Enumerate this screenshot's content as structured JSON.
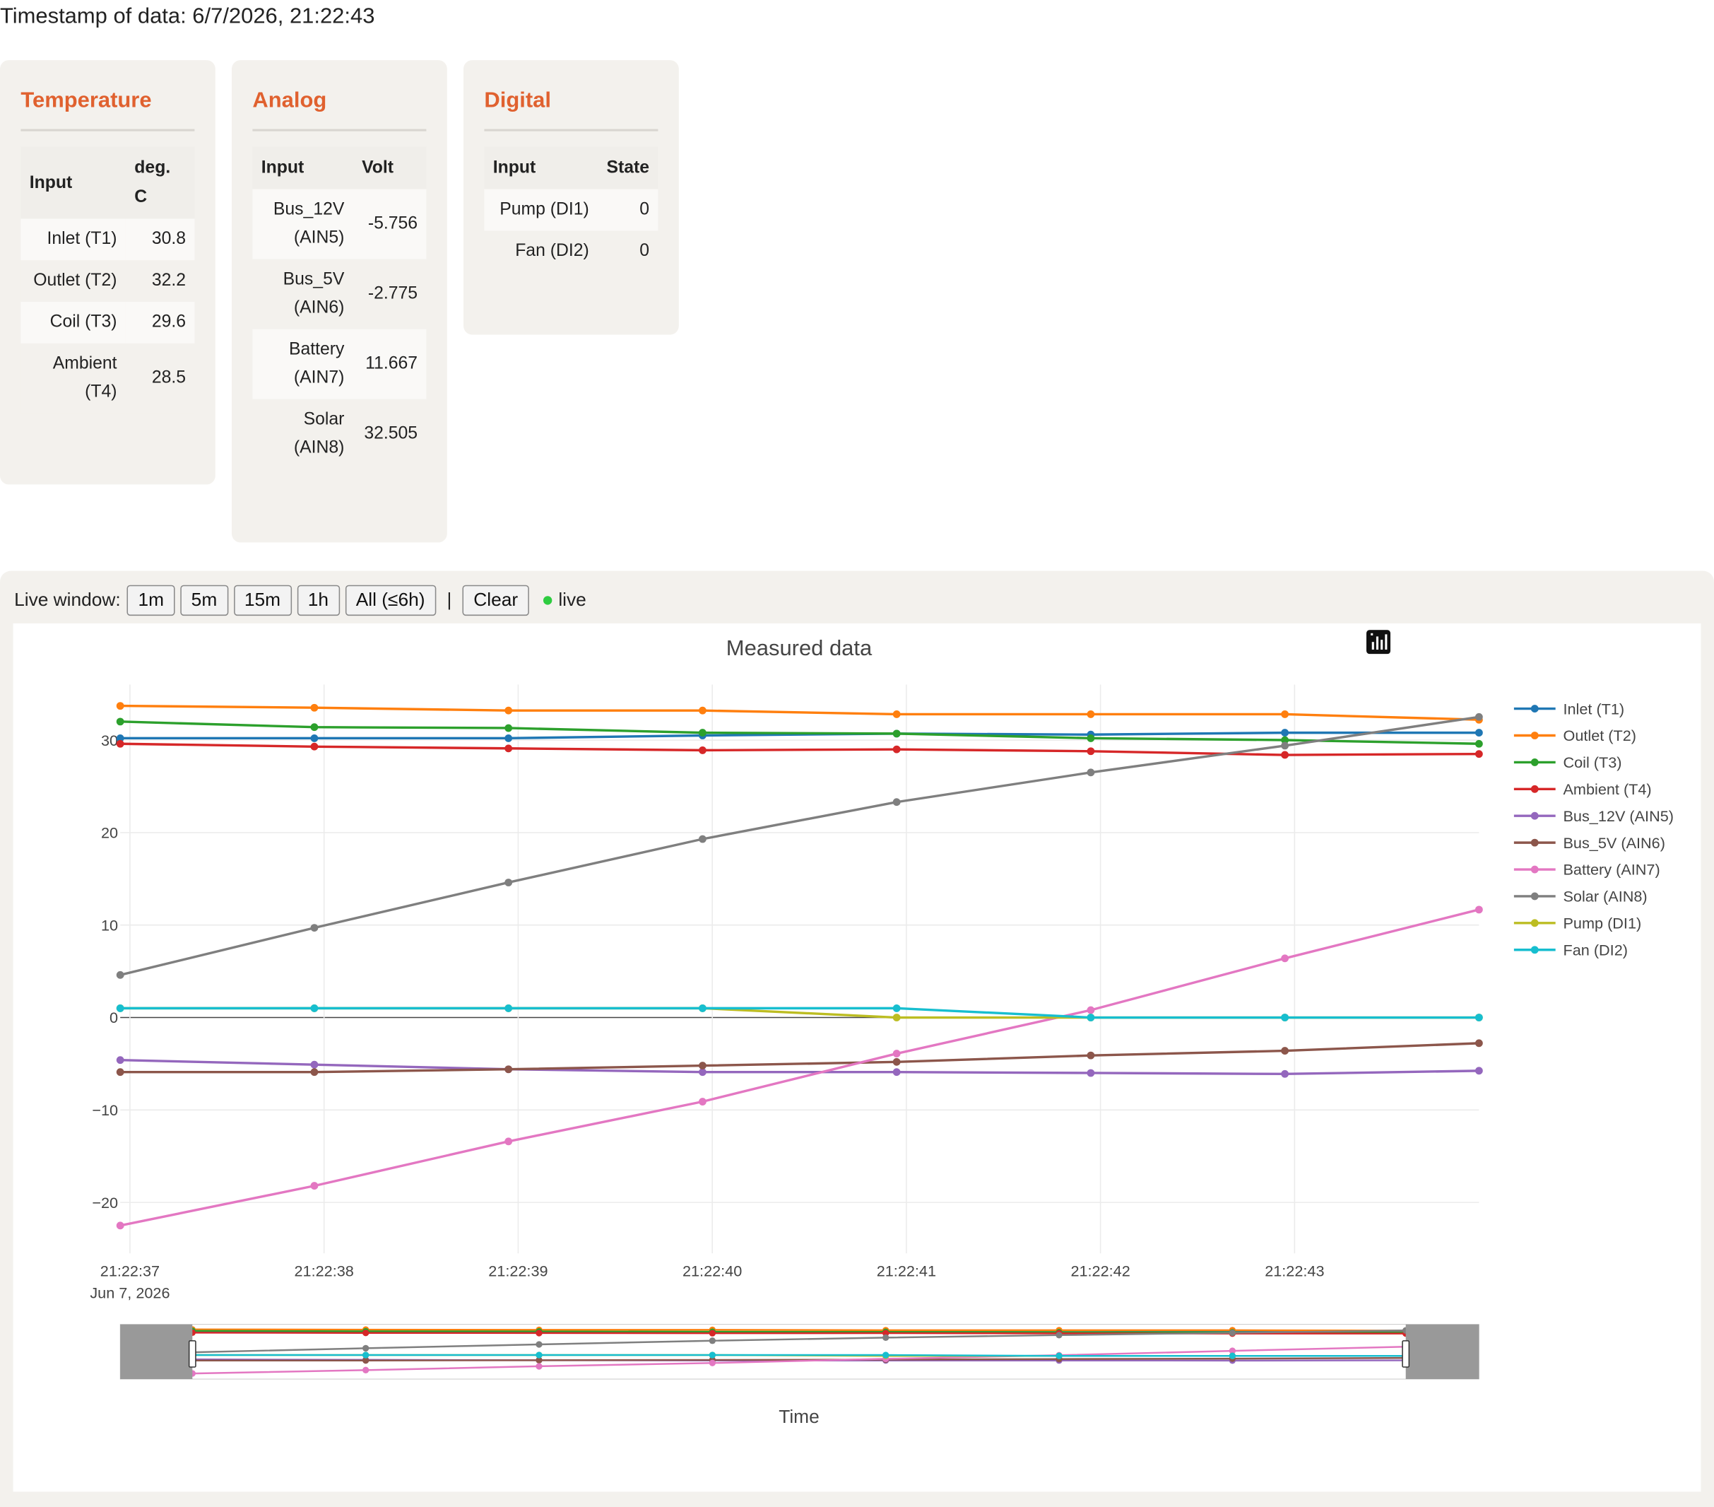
{
  "timestamp_text": "Timestamp of data: 6/7/2026, 21:22:43",
  "cards": {
    "temperature": {
      "title": "Temperature",
      "header": [
        "Input",
        "deg. C"
      ],
      "rows": [
        {
          "input": "Inlet (T1)",
          "value": "30.8"
        },
        {
          "input": "Outlet (T2)",
          "value": "32.2"
        },
        {
          "input": "Coil (T3)",
          "value": "29.6"
        },
        {
          "input": "Ambient (T4)",
          "value": "28.5"
        }
      ]
    },
    "analog": {
      "title": "Analog",
      "header": [
        "Input",
        "Volt"
      ],
      "rows": [
        {
          "input": "Bus_12V (AIN5)",
          "value": "-5.756"
        },
        {
          "input": "Bus_5V (AIN6)",
          "value": "-2.775"
        },
        {
          "input": "Battery (AIN7)",
          "value": "11.667"
        },
        {
          "input": "Solar (AIN8)",
          "value": "32.505"
        }
      ]
    },
    "digital": {
      "title": "Digital",
      "header": [
        "Input",
        "State"
      ],
      "rows": [
        {
          "input": "Pump (DI1)",
          "value": "0"
        },
        {
          "input": "Fan (DI2)",
          "value": "0"
        }
      ]
    }
  },
  "controls": {
    "label": "Live window:",
    "buttons": [
      "1m",
      "5m",
      "15m",
      "1h",
      "All (≤6h)"
    ],
    "separator": "|",
    "clear": "Clear",
    "live_text": "live"
  },
  "modebar_icons": [
    "camera-icon",
    "zoom-icon",
    "pan-icon",
    "box-select-icon",
    "zoom-in-icon",
    "zoom-out-icon",
    "autoscale-icon",
    "reset-axes-icon",
    "plotly-logo-icon"
  ],
  "chart_data": {
    "type": "line",
    "title": "Measured data",
    "xlabel": "Time",
    "ylabel": "",
    "x": [
      "21:22:36.95",
      "21:22:37.95",
      "21:22:38.95",
      "21:22:39.95",
      "21:22:40.95",
      "21:22:41.95",
      "21:22:42.95",
      "21:22:43.95"
    ],
    "x_tick_labels": [
      "21:22:37",
      "21:22:38",
      "21:22:39",
      "21:22:40",
      "21:22:41",
      "21:22:42",
      "21:22:43"
    ],
    "x_date_label": "Jun 7, 2026",
    "y_ticks": [
      "30",
      "20",
      "10",
      "0",
      "−10",
      "−20"
    ],
    "ylim": [
      -25.5,
      36
    ],
    "grid": true,
    "legend_position": "right",
    "rangeslider": true,
    "series": [
      {
        "name": "Inlet (T1)",
        "color": "#1f77b4",
        "values": [
          30.2,
          30.2,
          30.2,
          30.5,
          30.7,
          30.6,
          30.8,
          30.8
        ]
      },
      {
        "name": "Outlet (T2)",
        "color": "#ff7f0e",
        "values": [
          33.7,
          33.5,
          33.2,
          33.2,
          32.8,
          32.8,
          32.8,
          32.2
        ]
      },
      {
        "name": "Coil (T3)",
        "color": "#2ca02c",
        "values": [
          32.0,
          31.4,
          31.3,
          30.8,
          30.7,
          30.2,
          30.0,
          29.6
        ]
      },
      {
        "name": "Ambient (T4)",
        "color": "#d62728",
        "values": [
          29.6,
          29.3,
          29.1,
          28.9,
          29.0,
          28.8,
          28.4,
          28.5
        ]
      },
      {
        "name": "Bus_12V (AIN5)",
        "color": "#9467bd",
        "values": [
          -4.6,
          -5.1,
          -5.6,
          -5.9,
          -5.9,
          -6.0,
          -6.1,
          -5.756
        ]
      },
      {
        "name": "Bus_5V (AIN6)",
        "color": "#8c564b",
        "values": [
          -5.9,
          -5.9,
          -5.6,
          -5.2,
          -4.8,
          -4.1,
          -3.6,
          -2.775
        ]
      },
      {
        "name": "Battery (AIN7)",
        "color": "#e377c2",
        "values": [
          -22.5,
          -18.2,
          -13.4,
          -9.1,
          -3.9,
          0.8,
          6.4,
          11.667
        ]
      },
      {
        "name": "Solar (AIN8)",
        "color": "#7f7f7f",
        "values": [
          4.6,
          9.7,
          14.6,
          19.3,
          23.3,
          26.5,
          29.4,
          32.505
        ]
      },
      {
        "name": "Pump (DI1)",
        "color": "#bcbd22",
        "values": [
          1,
          1,
          1,
          1,
          0,
          0,
          0,
          0
        ]
      },
      {
        "name": "Fan (DI2)",
        "color": "#17becf",
        "values": [
          1,
          1,
          1,
          1,
          1,
          0,
          0,
          0
        ]
      }
    ]
  }
}
